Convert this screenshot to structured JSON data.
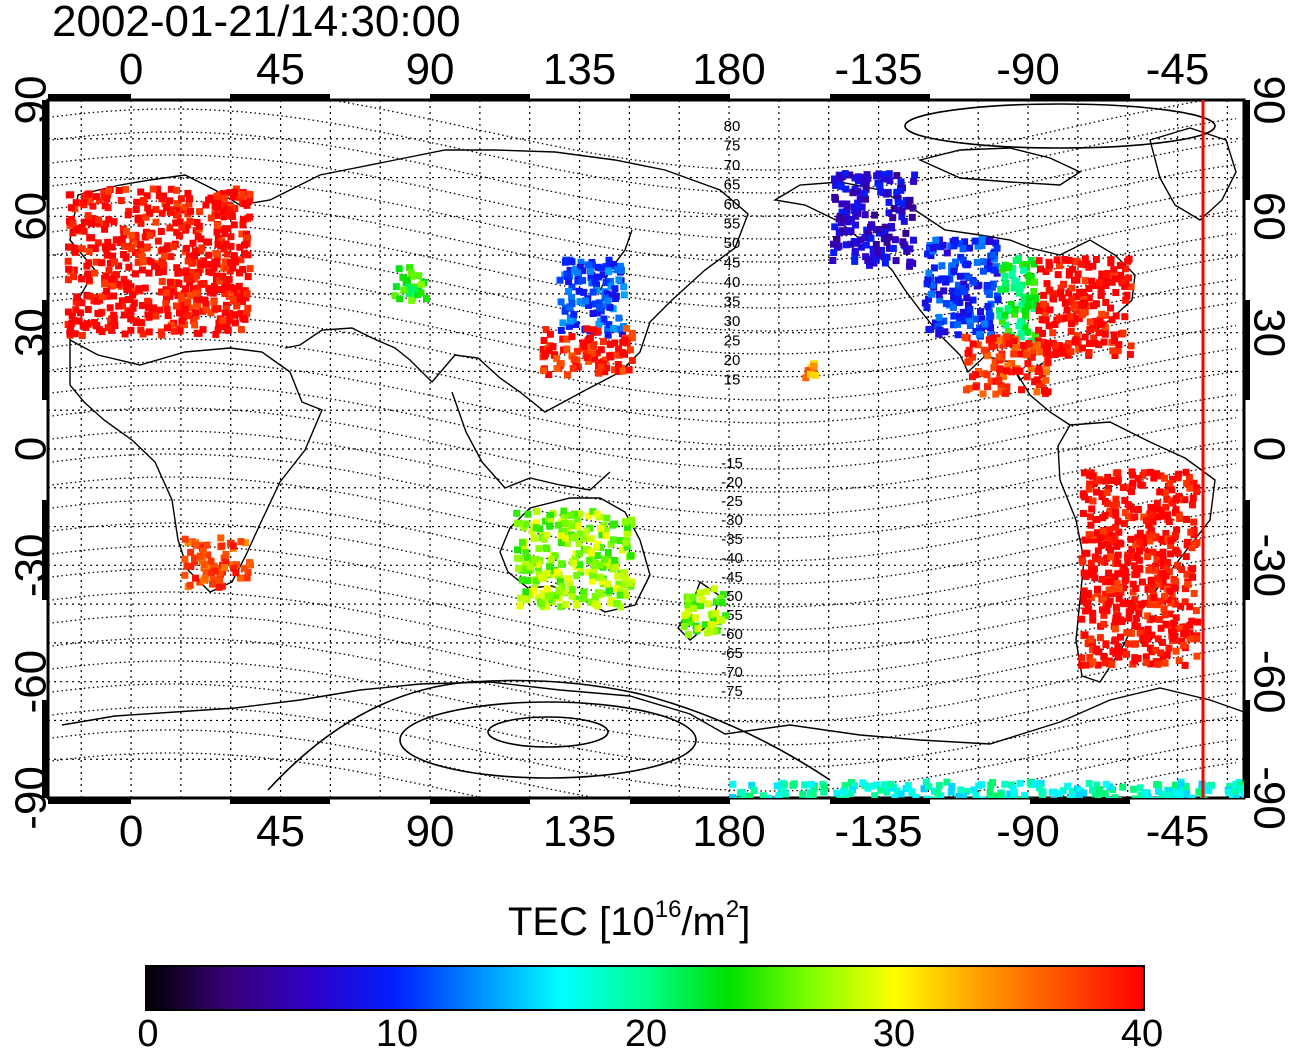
{
  "timestamp": "2002-01-21/14:30:00",
  "axes": {
    "top_lon_labels": [
      "0",
      "45",
      "90",
      "135",
      "180",
      "-135",
      "-90",
      "-45"
    ],
    "bottom_lon_labels": [
      "0",
      "45",
      "90",
      "135",
      "180",
      "-135",
      "-90",
      "-45"
    ],
    "left_lat_labels": [
      "90",
      "60",
      "30",
      "0",
      "-30",
      "-60",
      "-90"
    ],
    "right_lat_labels": [
      "90",
      "60",
      "30",
      "0",
      "-30",
      "-60",
      "-90"
    ]
  },
  "geomag_contours": {
    "north_labels": [
      "80",
      "75",
      "70",
      "65",
      "60",
      "55",
      "50",
      "45",
      "40",
      "35",
      "30",
      "25",
      "20",
      "15"
    ],
    "south_labels": [
      "-15",
      "-20",
      "-25",
      "-30",
      "-35",
      "-40",
      "-45",
      "-50",
      "-55",
      "-60",
      "-65",
      "-70",
      "-75"
    ]
  },
  "colorbar": {
    "title_main": "TEC  [10",
    "title_sup1": "16",
    "title_mid": "/m",
    "title_sup2": "2",
    "title_end": "]",
    "tick_labels": [
      "0",
      "10",
      "20",
      "30",
      "40"
    ],
    "min": 0,
    "max": 40,
    "colors": [
      "#000000",
      "#3a007a",
      "#3000c8",
      "#0020ff",
      "#0090ff",
      "#00ffff",
      "#00ff90",
      "#00e000",
      "#80ff00",
      "#ffff00",
      "#ffa000",
      "#ff5000",
      "#ff0000"
    ]
  },
  "chart_data": {
    "type": "heatmap",
    "x_axis": "longitude",
    "y_axis": "latitude",
    "xlim": [
      -25,
      335
    ],
    "ylim": [
      -90,
      90
    ],
    "value_range": [
      0,
      40
    ],
    "grid": true,
    "terminator_lon": -52,
    "regions": [
      {
        "lon": [
          -20,
          35
        ],
        "lat": [
          30,
          68
        ],
        "tec": 40
      },
      {
        "lon": [
          78,
          88
        ],
        "lat": [
          39,
          48
        ],
        "tec": 24
      },
      {
        "lon": [
          128,
          148
        ],
        "lat": [
          30,
          50
        ],
        "tec": 11
      },
      {
        "lon": [
          122,
          150
        ],
        "lat": [
          20,
          32
        ],
        "tec": 39
      },
      {
        "lon": [
          -150,
          -125
        ],
        "lat": [
          48,
          72
        ],
        "tec": 7
      },
      {
        "lon": [
          -122,
          -100
        ],
        "lat": [
          30,
          55
        ],
        "tec": 10
      },
      {
        "lon": [
          -100,
          -88
        ],
        "lat": [
          28,
          50
        ],
        "tec": 22
      },
      {
        "lon": [
          -88,
          -60
        ],
        "lat": [
          25,
          50
        ],
        "tec": 40
      },
      {
        "lon": [
          -110,
          -85
        ],
        "lat": [
          15,
          30
        ],
        "tec": 38
      },
      {
        "lon": [
          -158,
          -154
        ],
        "lat": [
          19,
          23
        ],
        "tec": 34
      },
      {
        "lon": [
          15,
          35
        ],
        "lat": [
          -35,
          -22
        ],
        "tec": 37
      },
      {
        "lon": [
          115,
          150
        ],
        "lat": [
          -40,
          -15
        ],
        "tec": 27
      },
      {
        "lon": [
          165,
          178
        ],
        "lat": [
          -47,
          -35
        ],
        "tec": 27
      },
      {
        "lon": [
          -75,
          -40
        ],
        "lat": [
          -55,
          -5
        ],
        "tec": 40
      },
      {
        "lon": [
          -180,
          180
        ],
        "lat": [
          -90,
          -85
        ],
        "tec": 18
      }
    ]
  }
}
